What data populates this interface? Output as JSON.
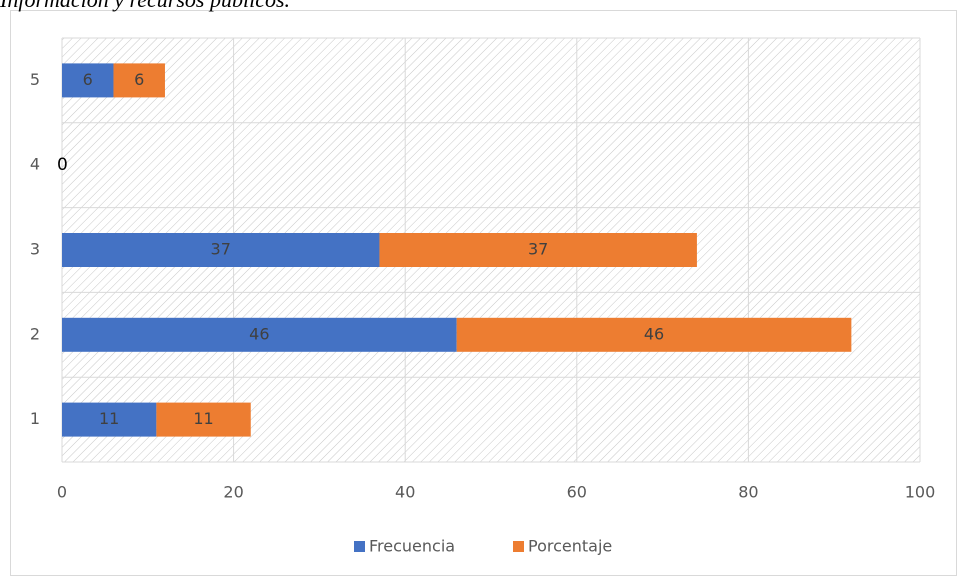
{
  "chart_data": {
    "type": "stacked-bar-horizontal",
    "title": "Información y recursos públicos.",
    "categories": [
      "1",
      "2",
      "3",
      "4",
      "5"
    ],
    "series": [
      {
        "name": "Frecuencia",
        "color": "#4472c4",
        "values": [
          11,
          46,
          37,
          0,
          6
        ]
      },
      {
        "name": "Porcentaje",
        "color": "#ed7d31",
        "values": [
          11,
          46,
          37,
          0,
          6
        ]
      }
    ],
    "xlim": [
      0,
      100
    ],
    "xticks": [
      0,
      20,
      40,
      60,
      80,
      100
    ],
    "grid": true,
    "legend": "bottom"
  }
}
